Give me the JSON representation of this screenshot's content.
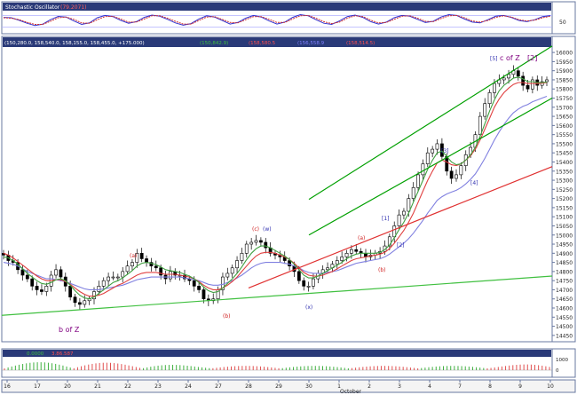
{
  "chart_data": [
    {
      "type": "line",
      "panel": "stochastic-oscillator",
      "title": "Stochastic Oscillator",
      "value_label": "(79.2071)",
      "ylim": [
        0,
        100
      ],
      "y_ticks": [
        50
      ],
      "series": [
        {
          "color": "#3030d0",
          "values": [
            70,
            68,
            55,
            40,
            28,
            35,
            58,
            75,
            72,
            52,
            34,
            42,
            68,
            80,
            74,
            55,
            40,
            48,
            70,
            82,
            76,
            60,
            42,
            30,
            38,
            62,
            78,
            72,
            54,
            36,
            44,
            66,
            80,
            72,
            52,
            36,
            46,
            70,
            84,
            78,
            58,
            40,
            34,
            52,
            74,
            82,
            70,
            48,
            36,
            46,
            68,
            80,
            76,
            60,
            44,
            50,
            72,
            84,
            80,
            62,
            46,
            42,
            58,
            76,
            80,
            70,
            54,
            48,
            58,
            74,
            79
          ]
        },
        {
          "color": "#d03030",
          "values": [
            68,
            66,
            58,
            45,
            34,
            34,
            50,
            68,
            72,
            60,
            42,
            40,
            58,
            74,
            76,
            62,
            46,
            46,
            62,
            78,
            78,
            66,
            50,
            36,
            36,
            54,
            72,
            74,
            60,
            44,
            42,
            58,
            74,
            74,
            60,
            44,
            44,
            62,
            78,
            80,
            66,
            48,
            38,
            46,
            66,
            78,
            74,
            56,
            42,
            44,
            60,
            76,
            78,
            66,
            50,
            48,
            64,
            78,
            80,
            68,
            52,
            46,
            54,
            70,
            78,
            72,
            58,
            52,
            56,
            68,
            76
          ]
        }
      ]
    },
    {
      "type": "candlestick",
      "panel": "price",
      "header_text": "(150,280.0, 158,540.0, 158,155.0, 158,455.0, +175.000)",
      "header_values": [
        "(150,842.9)",
        "(158,580.5",
        "(156,558.9",
        "(158,514.5)"
      ],
      "y_ticks": [
        14450,
        14500,
        14550,
        14600,
        14650,
        14700,
        14750,
        14800,
        14850,
        14900,
        14950,
        15000,
        15050,
        15100,
        15150,
        15200,
        15250,
        15300,
        15350,
        15400,
        15450,
        15500,
        15550,
        15600,
        15650,
        15700,
        15750,
        15800,
        15850,
        15900,
        15950,
        16000
      ],
      "ylim": [
        14425,
        16020
      ],
      "x_tick_labels": [
        "16",
        "17",
        "20",
        "21",
        "22",
        "23",
        "24",
        "27",
        "28",
        "29",
        "30",
        "1",
        "2",
        "3",
        "4",
        "7",
        "8",
        "9",
        "10"
      ],
      "x_month_label": "October",
      "closes": [
        14890,
        14860,
        14850,
        14810,
        14780,
        14760,
        14720,
        14700,
        14690,
        14720,
        14780,
        14810,
        14770,
        14720,
        14660,
        14630,
        14620,
        14640,
        14650,
        14690,
        14720,
        14750,
        14770,
        14770,
        14770,
        14800,
        14830,
        14850,
        14900,
        14870,
        14850,
        14830,
        14820,
        14780,
        14760,
        14800,
        14780,
        14780,
        14760,
        14750,
        14720,
        14700,
        14650,
        14640,
        14650,
        14700,
        14770,
        14790,
        14820,
        14860,
        14900,
        14950,
        14960,
        14970,
        14960,
        14930,
        14900,
        14890,
        14880,
        14860,
        14830,
        14800,
        14750,
        14720,
        14720,
        14760,
        14790,
        14810,
        14820,
        14840,
        14860,
        14880,
        14900,
        14920,
        14910,
        14900,
        14880,
        14890,
        14900,
        14910,
        14940,
        14990,
        15050,
        15110,
        15130,
        15200,
        15260,
        15330,
        15390,
        15450,
        15470,
        15500,
        15430,
        15350,
        15310,
        15330,
        15380,
        15440,
        15480,
        15550,
        15650,
        15720,
        15780,
        15830,
        15850,
        15860,
        15880,
        15900,
        15870,
        15820,
        15800,
        15850,
        15820,
        15840,
        15850
      ],
      "moving_averages": [
        {
          "color": "#8080e0",
          "values": [
            14850,
            14845,
            14840,
            14830,
            14815,
            14800,
            14790,
            14780,
            14770,
            14760,
            14760,
            14755,
            14750,
            14745,
            14735,
            14725,
            14715,
            14705,
            14700,
            14700,
            14700,
            14705,
            14710,
            14715,
            14720,
            14725,
            14735,
            14745,
            14755,
            14760,
            14765,
            14770,
            14770,
            14770,
            14770,
            14770,
            14770,
            14770,
            14765,
            14760,
            14755,
            14750,
            14740,
            14730,
            14725,
            14725,
            14730,
            14740,
            14750,
            14765,
            14780,
            14800,
            14820,
            14835,
            14845,
            14850,
            14850,
            14850,
            14850,
            14845,
            14840,
            14830,
            14820,
            14805,
            14795,
            14790,
            14790,
            14790,
            14795,
            14800,
            14805,
            14815,
            14825,
            14835,
            14845,
            14850,
            14855,
            14860,
            14865,
            14870,
            14880,
            14895,
            14915,
            14935,
            14955,
            14980,
            15010,
            15045,
            15080,
            15120,
            15155,
            15190,
            15210,
            15225,
            15235,
            15245,
            15260,
            15280,
            15305,
            15335,
            15375,
            15420,
            15470,
            15520,
            15565,
            15605,
            15640,
            15670,
            15690,
            15705,
            15715,
            15730,
            15740,
            15750,
            15760
          ]
        },
        {
          "color": "#e04040",
          "values": [
            14900,
            14890,
            14875,
            14855,
            14835,
            14815,
            14795,
            14775,
            14760,
            14750,
            14750,
            14755,
            14755,
            14745,
            14730,
            14710,
            14690,
            14675,
            14665,
            14665,
            14670,
            14680,
            14695,
            14710,
            14725,
            14735,
            14750,
            14765,
            14780,
            14790,
            14795,
            14795,
            14795,
            14790,
            14785,
            14785,
            14785,
            14780,
            14775,
            14770,
            14760,
            14745,
            14725,
            14710,
            14700,
            14700,
            14710,
            14725,
            14745,
            14770,
            14800,
            14830,
            14860,
            14885,
            14900,
            14905,
            14905,
            14900,
            14890,
            14880,
            14865,
            14845,
            14820,
            14795,
            14780,
            14775,
            14775,
            14780,
            14790,
            14800,
            14815,
            14830,
            14845,
            14860,
            14870,
            14875,
            14880,
            14885,
            14890,
            14895,
            14905,
            14925,
            14955,
            14990,
            15025,
            15070,
            15120,
            15180,
            15240,
            15300,
            15350,
            15395,
            15410,
            15400,
            15385,
            15380,
            15390,
            15410,
            15435,
            15470,
            15520,
            15580,
            15640,
            15700,
            15745,
            15780,
            15805,
            15825,
            15835,
            15835,
            15830,
            15830,
            15830,
            15832,
            15835
          ]
        },
        {
          "color": "#40a040",
          "values": [
            14880,
            14875,
            14860,
            14840,
            14815,
            14790,
            14770,
            14750,
            14735,
            14730,
            14740,
            14755,
            14760,
            14750,
            14725,
            14695,
            14670,
            14655,
            14650,
            14660,
            14680,
            14700,
            14720,
            14740,
            14750,
            14765,
            14785,
            14805,
            14830,
            14845,
            14850,
            14845,
            14838,
            14825,
            14810,
            14805,
            14800,
            14795,
            14785,
            14775,
            14760,
            14740,
            14715,
            14695,
            14685,
            14690,
            14710,
            14735,
            14760,
            14790,
            14825,
            14865,
            14900,
            14925,
            14940,
            14940,
            14930,
            14915,
            14900,
            14885,
            14865,
            14840,
            14810,
            14780,
            14765,
            14765,
            14775,
            14790,
            14805,
            14820,
            14835,
            14850,
            14870,
            14885,
            14895,
            14900,
            14900,
            14900,
            14900,
            14905,
            14920,
            14945,
            14985,
            15030,
            15070,
            15120,
            15180,
            15240,
            15300,
            15360,
            15410,
            15450,
            15460,
            15430,
            15400,
            15385,
            15390,
            15410,
            15440,
            15480,
            15540,
            15610,
            15680,
            15740,
            15790,
            15820,
            15840,
            15860,
            15865,
            15855,
            15840,
            15840,
            15835,
            15835,
            15838
          ]
        }
      ],
      "trend_lines": [
        {
          "color": "#40c040",
          "from": [
            "x-start",
            14560
          ],
          "to": [
            "x-end",
            14775
          ]
        },
        {
          "color": "#e03030",
          "from": [
            "28",
            14710
          ],
          "to": [
            "x-end",
            15375
          ]
        },
        {
          "color": "#00a000",
          "from": [
            "30",
            15195
          ],
          "to": [
            "x-end",
            16035
          ]
        },
        {
          "color": "#00a000",
          "from": [
            "30",
            15000
          ],
          "to": [
            "x-end",
            15750
          ]
        }
      ],
      "annotations": [
        {
          "text": "b of Z",
          "color": "#800080"
        },
        {
          "text": "(a)",
          "color": "#d02020"
        },
        {
          "text": "(b)",
          "color": "#d02020"
        },
        {
          "text": "(c)",
          "color": "#d02020"
        },
        {
          "text": "(w)",
          "color": "#3030b0"
        },
        {
          "text": "(x)",
          "color": "#3030b0"
        },
        {
          "text": "(a)",
          "color": "#d02020"
        },
        {
          "text": "(b)",
          "color": "#d02020"
        },
        {
          "text": "[1]",
          "color": "#3030b0"
        },
        {
          "text": "[2]",
          "color": "#3030b0"
        },
        {
          "text": "[3]",
          "color": "#3030b0"
        },
        {
          "text": "[4]",
          "color": "#3030b0"
        },
        {
          "text": "[5]",
          "color": "#3030b0"
        },
        {
          "text": "c of Z",
          "color": "#800080"
        },
        {
          "text": "[2]",
          "color": "#800080"
        }
      ]
    },
    {
      "type": "bar",
      "panel": "oscillator",
      "header_values": [
        "0.0000",
        "3.86.587"
      ],
      "y_tick_labels": [
        "1000",
        "0"
      ]
    }
  ]
}
